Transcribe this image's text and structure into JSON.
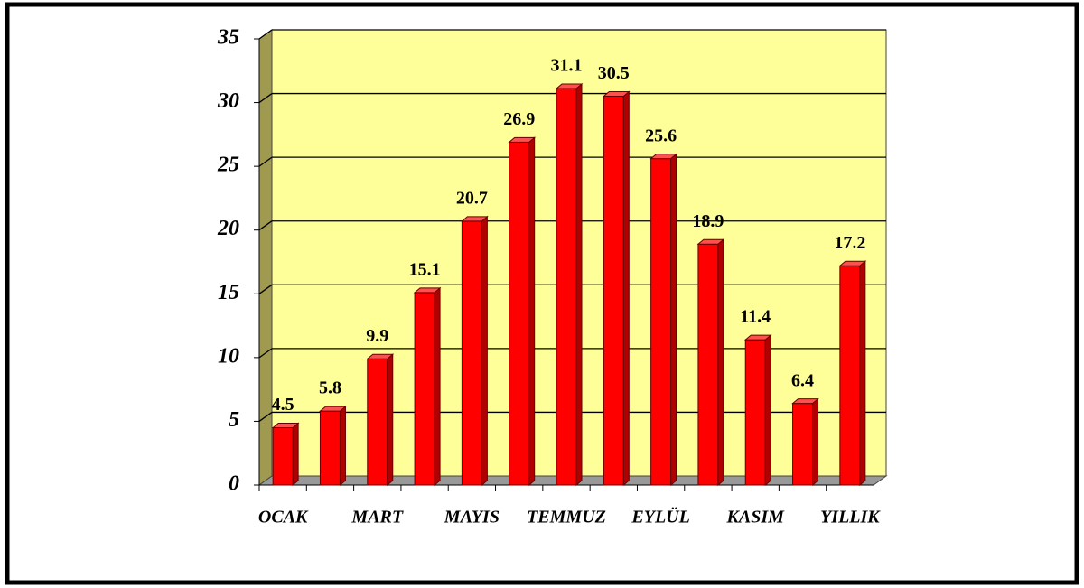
{
  "chart_data": {
    "type": "bar3d",
    "categories": [
      "OCAK",
      null,
      "MART",
      null,
      "MAYIS",
      null,
      "TEMMUZ",
      null,
      "EYLÜL",
      null,
      "KASIM",
      null,
      "YILLIK"
    ],
    "values": [
      4.5,
      5.8,
      9.9,
      15.1,
      20.7,
      26.9,
      31.1,
      30.5,
      25.6,
      18.9,
      11.4,
      6.4,
      17.2
    ],
    "color": "#ff0000",
    "ylim": [
      0,
      35
    ],
    "yticks": [
      0,
      5,
      10,
      15,
      20,
      25,
      30,
      35
    ],
    "grid": true
  }
}
